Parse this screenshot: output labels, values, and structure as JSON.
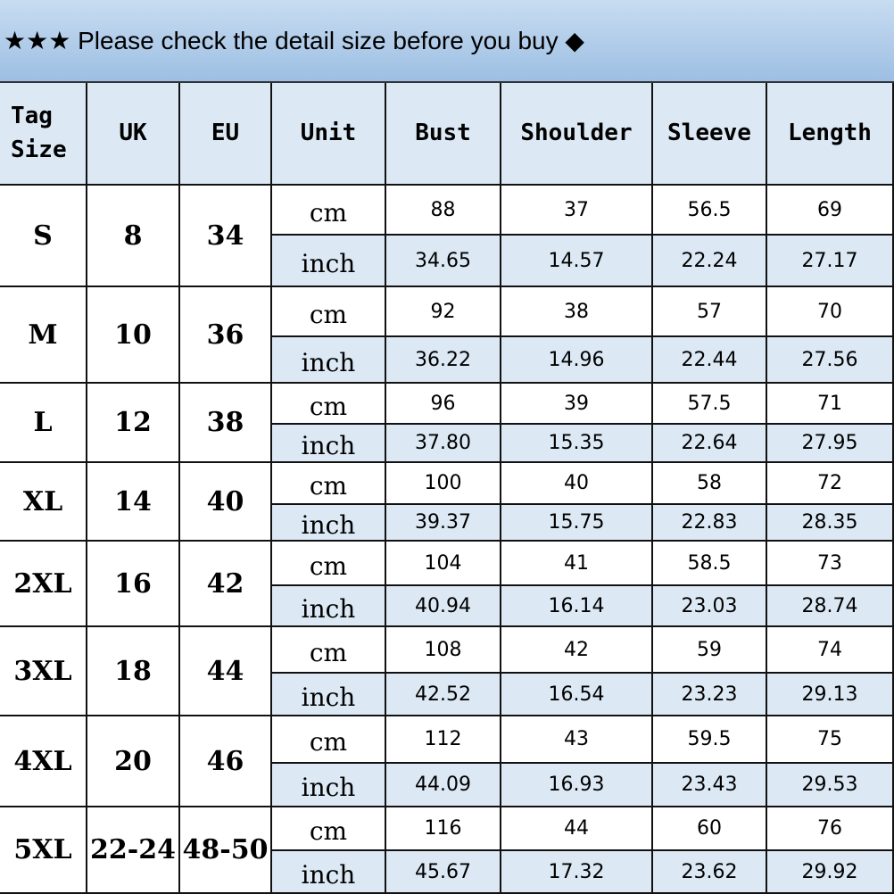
{
  "banner": "★★★ Please check the detail size before you buy ◆",
  "table": {
    "header": [
      "Tag Size",
      "UK",
      "EU",
      "Unit",
      "Bust",
      "Shoulder",
      "Sleeve",
      "Length"
    ],
    "rows": [
      {
        "size": "S",
        "uk": "8",
        "eu": "34",
        "cm": [
          "cm",
          "88",
          "37",
          "56.5",
          "69"
        ],
        "inch": [
          "inch",
          "34.65",
          "14.57",
          "22.24",
          "27.17"
        ]
      },
      {
        "size": "M",
        "uk": "10",
        "eu": "36",
        "cm": [
          "cm",
          "92",
          "38",
          "57",
          "70"
        ],
        "inch": [
          "inch",
          "36.22",
          "14.96",
          "22.44",
          "27.56"
        ]
      },
      {
        "size": "L",
        "uk": "12",
        "eu": "38",
        "cm": [
          "cm",
          "96",
          "39",
          "57.5",
          "71"
        ],
        "inch": [
          "inch",
          "37.80",
          "15.35",
          "22.64",
          "27.95"
        ]
      },
      {
        "size": "XL",
        "uk": "14",
        "eu": "40",
        "cm": [
          "cm",
          "100",
          "40",
          "58",
          "72"
        ],
        "inch": [
          "inch",
          "39.37",
          "15.75",
          "22.83",
          "28.35"
        ]
      },
      {
        "size": "2XL",
        "uk": "16",
        "eu": "42",
        "cm": [
          "cm",
          "104",
          "41",
          "58.5",
          "73"
        ],
        "inch": [
          "inch",
          "40.94",
          "16.14",
          "23.03",
          "28.74"
        ]
      },
      {
        "size": "3XL",
        "uk": "18",
        "eu": "44",
        "cm": [
          "cm",
          "108",
          "42",
          "59",
          "74"
        ],
        "inch": [
          "inch",
          "42.52",
          "16.54",
          "23.23",
          "29.13"
        ]
      },
      {
        "size": "4XL",
        "uk": "20",
        "eu": "46",
        "cm": [
          "cm",
          "112",
          "43",
          "59.5",
          "75"
        ],
        "inch": [
          "inch",
          "44.09",
          "16.93",
          "23.43",
          "29.53"
        ]
      },
      {
        "size": "5XL",
        "uk": "22-24",
        "eu": "48-50",
        "cm": [
          "cm",
          "116",
          "44",
          "60",
          "76"
        ],
        "inch": [
          "inch",
          "45.67",
          "17.32",
          "23.62",
          "29.92"
        ]
      }
    ]
  }
}
